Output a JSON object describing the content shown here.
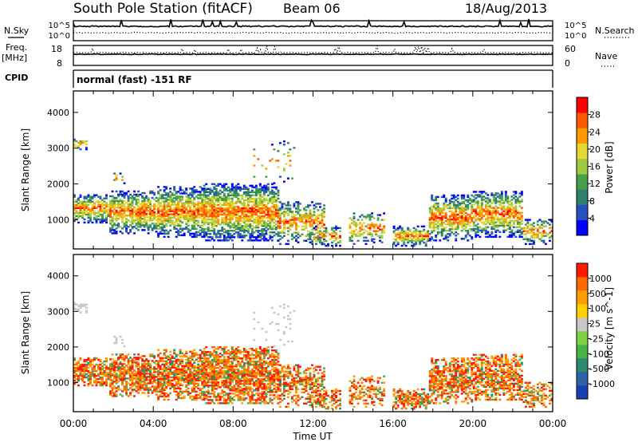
{
  "header": {
    "station": "South Pole Station (fitACF)",
    "beam": "Beam 06",
    "date": "18/Aug/2013"
  },
  "left_labels": {
    "nsky": "N.Sky",
    "freq_top": "Freq.",
    "freq_unit": "[MHz]",
    "cpid": "CPID"
  },
  "right_labels": {
    "nsearch": "N.Search",
    "nave": "Nave"
  },
  "nsky_ticks": [
    "10^5",
    "10^0"
  ],
  "nsearch_ticks": [
    "10^5",
    "10^0"
  ],
  "freq_ticks": [
    "18",
    "8"
  ],
  "nave_ticks": [
    "60",
    "0"
  ],
  "cpid_text": "normal (fast) -151 RF",
  "power_colorbar": {
    "label": "Power [dB]",
    "ticks": [
      "28",
      "24",
      "20",
      "16",
      "12",
      "8",
      "4"
    ],
    "colors": [
      "#0000ff",
      "#2a4fbe",
      "#2e7f6e",
      "#4aa04a",
      "#9ccc44",
      "#e6d82e",
      "#ff9a00",
      "#ff5a00",
      "#ff0000"
    ]
  },
  "velocity_colorbar": {
    "label": "Velocity [m s^-1]",
    "ticks": [
      "1000",
      "500",
      "100",
      "25",
      "-25",
      "-100",
      "-500",
      "-1000"
    ],
    "colors": [
      "#1a3fb0",
      "#2e63a8",
      "#2e8a6e",
      "#49b249",
      "#7fd244",
      "#c8c8c8",
      "#ffd000",
      "#ff9e00",
      "#ff6a00",
      "#ff1a00"
    ]
  },
  "chart_data": {
    "type": "heatmap",
    "ylabel": "Slant Range [km]",
    "xlabel": "Time UT",
    "x_ticks": [
      "00:00",
      "04:00",
      "08:00",
      "12:00",
      "16:00",
      "20:00",
      "00:00"
    ],
    "x_hours": [
      0,
      4,
      8,
      12,
      16,
      20,
      24
    ],
    "y_ticks": [
      1000,
      2000,
      3000,
      4000
    ],
    "xlim": [
      0,
      24
    ],
    "ylim": [
      180,
      4600
    ],
    "blobs": [
      {
        "t0": 0.0,
        "t1": 1.8,
        "r0": 900,
        "r1": 1700,
        "density": 0.85
      },
      {
        "t0": 1.8,
        "t1": 4.2,
        "r0": 600,
        "r1": 1800,
        "density": 0.9
      },
      {
        "t0": 4.2,
        "t1": 6.5,
        "r0": 500,
        "r1": 1900,
        "density": 0.85
      },
      {
        "t0": 6.5,
        "t1": 10.2,
        "r0": 400,
        "r1": 2000,
        "density": 0.9
      },
      {
        "t0": 10.2,
        "t1": 12.5,
        "r0": 300,
        "r1": 1500,
        "density": 0.6
      },
      {
        "t0": 12.0,
        "t1": 13.3,
        "r0": 250,
        "r1": 800,
        "density": 0.5
      },
      {
        "t0": 13.8,
        "t1": 15.5,
        "r0": 300,
        "r1": 1200,
        "density": 0.45
      },
      {
        "t0": 16.0,
        "t1": 17.8,
        "r0": 250,
        "r1": 800,
        "density": 0.8
      },
      {
        "t0": 17.8,
        "t1": 20.0,
        "r0": 400,
        "r1": 1700,
        "density": 0.75
      },
      {
        "t0": 20.0,
        "t1": 22.5,
        "r0": 500,
        "r1": 1800,
        "density": 0.7
      },
      {
        "t0": 22.5,
        "t1": 24.0,
        "r0": 300,
        "r1": 1000,
        "density": 0.5
      },
      {
        "t0": 0.0,
        "t1": 0.7,
        "r0": 2950,
        "r1": 3250,
        "density": 0.4
      },
      {
        "t0": 2.0,
        "t1": 2.6,
        "r0": 2000,
        "r1": 2300,
        "density": 0.35
      },
      {
        "t0": 9.0,
        "t1": 11.0,
        "r0": 2000,
        "r1": 3200,
        "density": 0.08
      }
    ]
  }
}
